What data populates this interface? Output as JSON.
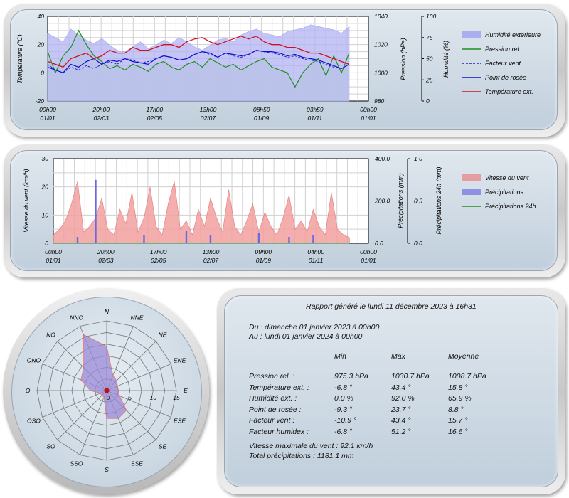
{
  "temp_chart": {
    "left_axis": {
      "label": "Température (°C)",
      "ticks": [
        "40",
        "20",
        "0",
        "-20"
      ],
      "min": -20,
      "max": 40
    },
    "press_axis": {
      "label": "Pression (hPa)",
      "ticks": [
        "1040",
        "1020",
        "1000",
        "980"
      ],
      "min": 980,
      "max": 1040
    },
    "hum_axis": {
      "label": "Humidité (%)",
      "ticks": [
        "100",
        "75",
        "50",
        "25",
        "0"
      ],
      "min": 0,
      "max": 100
    },
    "x_ticks": [
      {
        "time": "00h00",
        "date": "01/01"
      },
      {
        "time": "20h00",
        "date": "02/03"
      },
      {
        "time": "17h00",
        "date": "02/05"
      },
      {
        "time": "13h00",
        "date": "02/07"
      },
      {
        "time": "08h59",
        "date": "01/09"
      },
      {
        "time": "03h59",
        "date": "01/11"
      },
      {
        "time": "00h00",
        "date": "01/01"
      }
    ],
    "legend": [
      {
        "label": "Humidité extérieure",
        "color": "#8c8cf0",
        "kind": "fill"
      },
      {
        "label": "Pression rel.",
        "color": "#1f8f1f",
        "kind": "line"
      },
      {
        "label": "Facteur vent",
        "color": "#2020c0",
        "kind": "dash"
      },
      {
        "label": "Point de rosée",
        "color": "#1010d0",
        "kind": "line"
      },
      {
        "label": "Température ext.",
        "color": "#d01020",
        "kind": "line"
      }
    ]
  },
  "wind_chart": {
    "left_axis": {
      "label": "Vitesse du vent (km/h)",
      "ticks": [
        "30",
        "20",
        "10",
        "0"
      ],
      "min": 0,
      "max": 30
    },
    "rain_axis": {
      "label": "Précipitations (mm)",
      "ticks": [
        "400.0",
        "200.0",
        "0.0"
      ],
      "min": 0,
      "max": 400
    },
    "rain24_axis": {
      "label": "Précipitations 24h (mm)",
      "ticks": [
        "1.0",
        "0.5",
        "0.0"
      ],
      "min": 0,
      "max": 1
    },
    "x_ticks": [
      {
        "time": "00h00",
        "date": "01/01"
      },
      {
        "time": "20h00",
        "date": "02/03"
      },
      {
        "time": "17h00",
        "date": "02/05"
      },
      {
        "time": "13h00",
        "date": "02/07"
      },
      {
        "time": "09h00",
        "date": "01/09"
      },
      {
        "time": "04h00",
        "date": "01/11"
      },
      {
        "time": "00h00",
        "date": "01/01"
      }
    ],
    "legend": [
      {
        "label": "Vitesse du vent",
        "color": "#e88080",
        "kind": "fill"
      },
      {
        "label": "Précipitations",
        "color": "#7070e0",
        "kind": "fill"
      },
      {
        "label": "Précipitations 24h",
        "color": "#1f8f1f",
        "kind": "line"
      }
    ]
  },
  "rose": {
    "directions": [
      "N",
      "NNE",
      "NE",
      "ENE",
      "E",
      "ESE",
      "SE",
      "SSE",
      "S",
      "SSO",
      "SO",
      "OSO",
      "O",
      "ONO",
      "NO",
      "NNO"
    ],
    "ring_labels": [
      "0",
      "5",
      "10",
      "15"
    ],
    "max": 15,
    "values": [
      9.5,
      3.5,
      3.0,
      2.5,
      2.5,
      3.0,
      6.0,
      6.5,
      6.0,
      1.5,
      1.5,
      1.5,
      3.5,
      6.0,
      7.0,
      13.0
    ]
  },
  "report": {
    "title": "Rapport généré le lundi 11 décembre 2023 à 16h31",
    "from": "Du : dimanche 01 janvier 2023 à 00h00",
    "to": "Au : lundi 01 janvier 2024 à 00h00",
    "headers": [
      "Min",
      "Max",
      "Moyenne"
    ],
    "rows": [
      {
        "label": "Pression rel. :",
        "min": "975.3 hPa",
        "max": "1030.7 hPa",
        "avg": "1008.7 hPa"
      },
      {
        "label": "Température ext. :",
        "min": "-6.8 °",
        "max": "43.4 °",
        "avg": "15.8 °"
      },
      {
        "label": "Humidité ext. :",
        "min": "0.0 %",
        "max": "92.0 %",
        "avg": "65.9 %"
      },
      {
        "label": "Point de rosée :",
        "min": "-9.3 °",
        "max": "23.7 °",
        "avg": "8.8 °"
      },
      {
        "label": "Facteur vent :",
        "min": "-10.9 °",
        "max": "43.4 °",
        "avg": "15.7 °"
      },
      {
        "label": "Facteur humidex :",
        "min": "-6.8 °",
        "max": "51.2 °",
        "avg": "16.6 °"
      }
    ],
    "max_wind": "Vitesse maximale du vent : 92.1 km/h",
    "total_rain": "Total précipitations : 1181.1 mm"
  },
  "chart_data": [
    {
      "type": "line",
      "x_range": [
        "01/01 00h00",
        "01/01 00h00"
      ],
      "series": [
        {
          "name": "Humidité extérieure",
          "axis": "humidity",
          "values": [
            80,
            75,
            70,
            85,
            78,
            72,
            68,
            74,
            66,
            60,
            58,
            64,
            70,
            62,
            66,
            72,
            68,
            75,
            70,
            64,
            60,
            66,
            72,
            74,
            70,
            78,
            82,
            85,
            80,
            78,
            76,
            82,
            84,
            86,
            90,
            88,
            86,
            84,
            80,
            88
          ]
        },
        {
          "name": "Pression rel.",
          "axis": "pressure",
          "values": [
            1015,
            1000,
            1012,
            1018,
            1030,
            1020,
            1012,
            1008,
            1003,
            1005,
            1002,
            1006,
            1004,
            1001,
            1006,
            1008,
            1004,
            1002,
            1006,
            1008,
            1004,
            1010,
            1007,
            1004,
            1006,
            1002,
            1005,
            1008,
            1010,
            1004,
            1002,
            1000,
            990,
            1000,
            1006,
            1010,
            998,
            1012,
            1000,
            1014
          ]
        },
        {
          "name": "Facteur vent",
          "axis": "temperature",
          "values": [
            6,
            2,
            0,
            4,
            2,
            5,
            3,
            6,
            8,
            6,
            10,
            9,
            7,
            8,
            10,
            12,
            11,
            9,
            10,
            13,
            15,
            13,
            11,
            14,
            12,
            11,
            13,
            16,
            15,
            14,
            13,
            11,
            12,
            10,
            9,
            8,
            6,
            4,
            3,
            6
          ]
        },
        {
          "name": "Point de rosée",
          "axis": "temperature",
          "values": [
            4,
            2,
            0,
            6,
            4,
            8,
            10,
            6,
            9,
            8,
            10,
            8,
            7,
            6,
            10,
            12,
            11,
            9,
            10,
            13,
            15,
            14,
            11,
            14,
            13,
            12,
            13,
            16,
            15,
            15,
            14,
            12,
            13,
            11,
            10,
            9,
            7,
            5,
            3,
            6
          ]
        },
        {
          "name": "Température ext.",
          "axis": "temperature",
          "values": [
            8,
            6,
            4,
            10,
            12,
            14,
            10,
            12,
            16,
            14,
            14,
            18,
            16,
            16,
            18,
            20,
            20,
            18,
            22,
            24,
            25,
            22,
            20,
            22,
            24,
            26,
            24,
            26,
            22,
            20,
            20,
            18,
            18,
            16,
            14,
            14,
            12,
            10,
            8,
            6
          ]
        }
      ]
    },
    {
      "type": "area",
      "x_range": [
        "01/01 00h00",
        "01/01 00h00"
      ],
      "series": [
        {
          "name": "Vitesse du vent",
          "axis": "wind",
          "values": [
            3,
            5,
            8,
            14,
            22,
            4,
            6,
            9,
            16,
            5,
            3,
            12,
            7,
            18,
            4,
            9,
            20,
            6,
            3,
            14,
            22,
            5,
            8,
            3,
            12,
            6,
            16,
            9,
            4,
            19,
            6,
            3,
            8,
            14,
            4,
            11,
            6,
            3,
            9,
            17,
            5,
            8,
            4,
            12,
            6,
            3,
            18,
            5,
            3,
            2
          ]
        },
        {
          "name": "Précipitations",
          "axis": "rain",
          "values": [
            0,
            0,
            0,
            0,
            30,
            0,
            0,
            300,
            0,
            0,
            0,
            0,
            0,
            0,
            0,
            40,
            0,
            0,
            0,
            0,
            0,
            0,
            60,
            0,
            0,
            0,
            40,
            0,
            0,
            0,
            0,
            0,
            0,
            0,
            50,
            0,
            0,
            0,
            0,
            30,
            0,
            0,
            0,
            40,
            0,
            0,
            0,
            0,
            0,
            0
          ]
        },
        {
          "name": "Précipitations 24h",
          "axis": "rain24",
          "values": [
            0,
            0,
            0,
            0,
            0,
            0,
            0,
            0,
            0,
            0,
            0,
            0,
            0,
            0,
            0,
            0,
            0,
            0,
            0,
            0,
            0,
            0,
            0,
            0,
            0,
            0,
            0,
            0,
            0,
            0,
            0,
            0,
            0,
            0,
            0,
            0,
            0,
            0,
            0,
            0,
            0,
            0,
            0,
            0,
            0,
            0,
            0,
            0,
            0,
            0
          ]
        }
      ]
    }
  ]
}
